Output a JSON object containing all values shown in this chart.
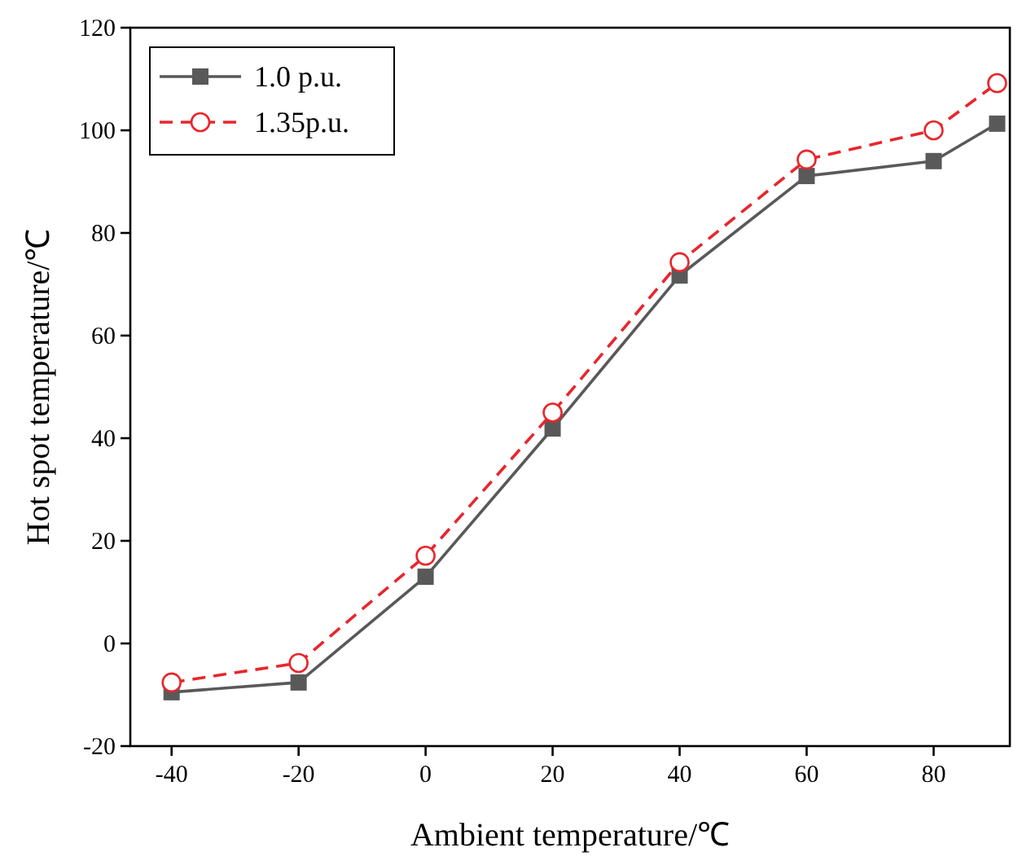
{
  "chart_data": {
    "type": "line",
    "xlabel": "Ambient temperature/℃",
    "ylabel": "Hot spot temperature/℃",
    "x": [
      -40,
      -20,
      0,
      20,
      40,
      60,
      80,
      90
    ],
    "series": [
      {
        "name": "1.0 p.u.",
        "color": "#595959",
        "values": [
          -9.5,
          -7.6,
          13,
          41.9,
          71.7,
          91.1,
          94,
          101.3
        ],
        "marker": "square",
        "line_style": "solid"
      },
      {
        "name": "1.35p.u.",
        "color": "#e8262c",
        "values": [
          -7.6,
          -3.8,
          17.1,
          45,
          74.3,
          94.3,
          100,
          109.2
        ],
        "marker": "circle",
        "line_style": "dashed"
      }
    ],
    "xlim": [
      -46.5,
      92
    ],
    "xticks": [
      -40,
      -20,
      0,
      20,
      40,
      60,
      80
    ],
    "ylim": [
      -20,
      120
    ],
    "yticks": [
      -20,
      0,
      20,
      40,
      60,
      80,
      100,
      120
    ],
    "grid": false,
    "legend": "top left"
  }
}
